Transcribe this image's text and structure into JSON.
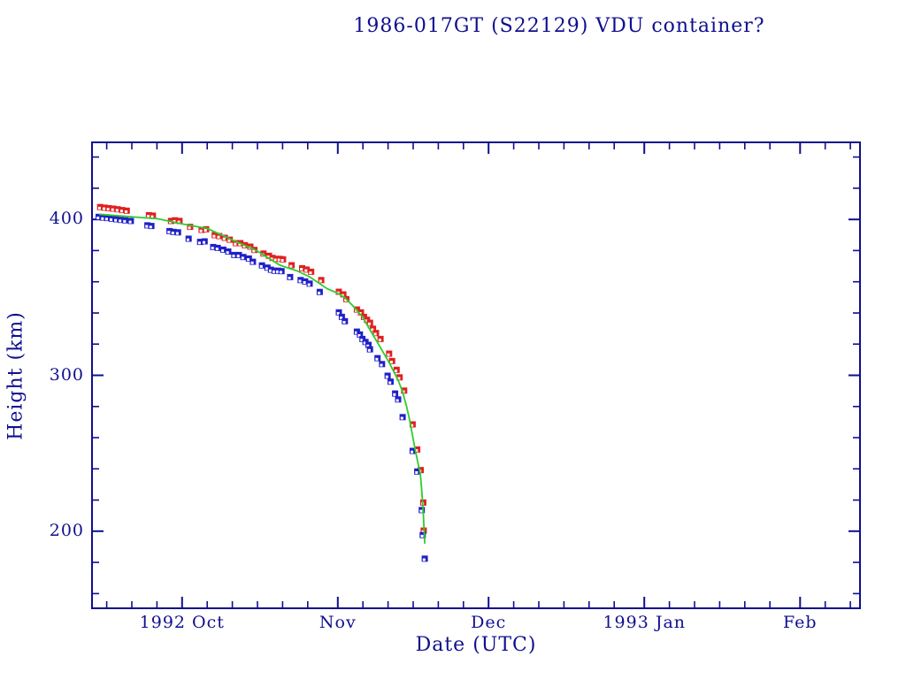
{
  "colors": {
    "background": "#ffffff",
    "axis_ink": "#0f0f8f",
    "red_series": "#e02020",
    "blue_series": "#2020c8",
    "fit_line": "#2ecc2e"
  },
  "chart_data": {
    "type": "scatter",
    "title": "1986-017GT (S22129) VDU container?",
    "xlabel": "Date (UTC)",
    "ylabel": "Height (km)",
    "grid": "off",
    "legend": "none",
    "x_axis": {
      "unit": "days since 1992-10-01 UTC",
      "range": [
        -18.1,
        135.1
      ],
      "major_ticks": [
        {
          "t": 0,
          "label": "1992 Oct"
        },
        {
          "t": 31,
          "label": "Nov"
        },
        {
          "t": 61,
          "label": "Dec"
        },
        {
          "t": 92,
          "label": "1993 Jan"
        },
        {
          "t": 123,
          "label": "Feb"
        }
      ],
      "minor_ticks": [
        -15,
        -10,
        -5,
        5,
        10,
        15,
        20,
        25,
        36,
        41,
        46,
        51,
        56,
        66,
        71,
        76,
        81,
        86,
        97,
        102,
        107,
        112,
        117,
        128,
        133
      ]
    },
    "y_axis": {
      "unit": "km",
      "range": [
        150,
        450
      ],
      "major_ticks": [
        {
          "v": 200,
          "label": "200"
        },
        {
          "v": 300,
          "label": "300"
        },
        {
          "v": 400,
          "label": "400"
        }
      ],
      "minor_ticks": [
        160,
        180,
        220,
        240,
        260,
        280,
        320,
        340,
        360,
        380,
        420,
        440
      ]
    },
    "series": [
      {
        "name": "red-height-points",
        "kind": "scatter",
        "marker": "half-filled-square",
        "color": "#e02020",
        "points": [
          [
            -16.3,
            407.9
          ],
          [
            -15.4,
            407.5
          ],
          [
            -14.6,
            407.2
          ],
          [
            -13.7,
            406.9
          ],
          [
            -12.8,
            406.5
          ],
          [
            -11.9,
            406.0
          ],
          [
            -11.0,
            405.6
          ],
          [
            -6.6,
            402.7
          ],
          [
            -5.8,
            402.4
          ],
          [
            -2.2,
            399.0
          ],
          [
            -1.4,
            399.4
          ],
          [
            -0.5,
            399.0
          ],
          [
            1.6,
            395.2
          ],
          [
            3.9,
            393.3
          ],
          [
            4.8,
            393.7
          ],
          [
            6.5,
            389.9
          ],
          [
            7.4,
            389.3
          ],
          [
            8.5,
            388.2
          ],
          [
            9.5,
            387.0
          ],
          [
            10.7,
            384.8
          ],
          [
            11.6,
            384.8
          ],
          [
            12.5,
            383.5
          ],
          [
            13.6,
            382.5
          ],
          [
            14.4,
            380.4
          ],
          [
            16.2,
            378.1
          ],
          [
            17.3,
            376.7
          ],
          [
            18.0,
            375.3
          ],
          [
            18.7,
            374.7
          ],
          [
            19.4,
            374.7
          ],
          [
            20.1,
            374.4
          ],
          [
            21.8,
            370.6
          ],
          [
            23.9,
            368.7
          ],
          [
            24.8,
            367.8
          ],
          [
            25.7,
            366.4
          ],
          [
            27.7,
            361.1
          ],
          [
            31.2,
            353.6
          ],
          [
            32.1,
            351.9
          ],
          [
            32.7,
            348.9
          ],
          [
            34.8,
            342.2
          ],
          [
            35.6,
            340.4
          ],
          [
            36.2,
            337.5
          ],
          [
            36.8,
            335.6
          ],
          [
            37.4,
            333.7
          ],
          [
            38.0,
            329.9
          ],
          [
            38.6,
            327.1
          ],
          [
            39.5,
            323.3
          ],
          [
            41.2,
            313.9
          ],
          [
            41.8,
            309.2
          ],
          [
            42.7,
            303.5
          ],
          [
            43.3,
            298.7
          ],
          [
            44.2,
            290.2
          ],
          [
            45.9,
            268.5
          ],
          [
            46.8,
            252.4
          ],
          [
            47.5,
            239.2
          ],
          [
            48.0,
            218.4
          ],
          [
            48.1,
            200.4
          ]
        ]
      },
      {
        "name": "blue-height-points",
        "kind": "scatter",
        "marker": "half-filled-square",
        "color": "#2020c8",
        "points": [
          [
            -16.6,
            401.6
          ],
          [
            -15.7,
            401.2
          ],
          [
            -14.9,
            400.9
          ],
          [
            -14.0,
            400.5
          ],
          [
            -13.1,
            400.1
          ],
          [
            -12.2,
            399.7
          ],
          [
            -11.3,
            399.4
          ],
          [
            -10.2,
            399.0
          ],
          [
            -6.9,
            396.2
          ],
          [
            -6.1,
            395.8
          ],
          [
            -2.5,
            392.5
          ],
          [
            -1.7,
            392.0
          ],
          [
            -0.8,
            391.7
          ],
          [
            1.3,
            387.6
          ],
          [
            3.6,
            385.6
          ],
          [
            4.5,
            385.9
          ],
          [
            6.2,
            382.3
          ],
          [
            7.1,
            381.7
          ],
          [
            8.2,
            380.6
          ],
          [
            9.2,
            379.4
          ],
          [
            10.4,
            377.2
          ],
          [
            11.3,
            377.2
          ],
          [
            12.2,
            375.9
          ],
          [
            13.3,
            374.9
          ],
          [
            14.1,
            372.8
          ],
          [
            15.9,
            370.5
          ],
          [
            17.0,
            369.1
          ],
          [
            17.7,
            367.7
          ],
          [
            18.4,
            367.1
          ],
          [
            19.1,
            367.1
          ],
          [
            19.8,
            366.8
          ],
          [
            21.5,
            363.0
          ],
          [
            23.6,
            361.1
          ],
          [
            24.5,
            360.2
          ],
          [
            25.4,
            358.8
          ],
          [
            27.4,
            353.5
          ],
          [
            31.2,
            340.4
          ],
          [
            31.8,
            337.5
          ],
          [
            32.4,
            334.7
          ],
          [
            34.8,
            328.0
          ],
          [
            35.4,
            326.2
          ],
          [
            35.9,
            323.3
          ],
          [
            36.5,
            321.4
          ],
          [
            37.1,
            319.5
          ],
          [
            37.4,
            316.7
          ],
          [
            38.9,
            311.0
          ],
          [
            39.8,
            307.2
          ],
          [
            40.9,
            299.7
          ],
          [
            41.5,
            295.9
          ],
          [
            42.4,
            288.3
          ],
          [
            43.0,
            284.5
          ],
          [
            43.9,
            273.2
          ],
          [
            45.9,
            251.5
          ],
          [
            46.8,
            238.3
          ],
          [
            47.7,
            213.6
          ],
          [
            47.9,
            197.5
          ],
          [
            48.3,
            182.4
          ]
        ]
      },
      {
        "name": "decay-fit-line",
        "kind": "line",
        "color": "#2ecc2e",
        "points": [
          [
            -16.5,
            403.3
          ],
          [
            -12,
            402.2
          ],
          [
            -8,
            401.2
          ],
          [
            -5,
            400.5
          ],
          [
            0,
            397.1
          ],
          [
            5,
            394.2
          ],
          [
            10.7,
            385.8
          ],
          [
            14.8,
            380.1
          ],
          [
            19.5,
            370.6
          ],
          [
            23,
            366.8
          ],
          [
            25.4,
            363.2
          ],
          [
            28.9,
            355.5
          ],
          [
            31,
            352.6
          ],
          [
            32.4,
            349.8
          ],
          [
            34,
            344.5
          ],
          [
            35.9,
            337.5
          ],
          [
            37.7,
            327.5
          ],
          [
            39.5,
            317.7
          ],
          [
            41.2,
            308.2
          ],
          [
            43,
            296.8
          ],
          [
            43.9,
            289.3
          ],
          [
            44.7,
            279.8
          ],
          [
            45.3,
            271.3
          ],
          [
            46.1,
            257.2
          ],
          [
            46.8,
            245.8
          ],
          [
            47.4,
            237.3
          ],
          [
            47.7,
            226.0
          ],
          [
            48.0,
            211.8
          ],
          [
            48.3,
            192.0
          ]
        ]
      }
    ]
  }
}
